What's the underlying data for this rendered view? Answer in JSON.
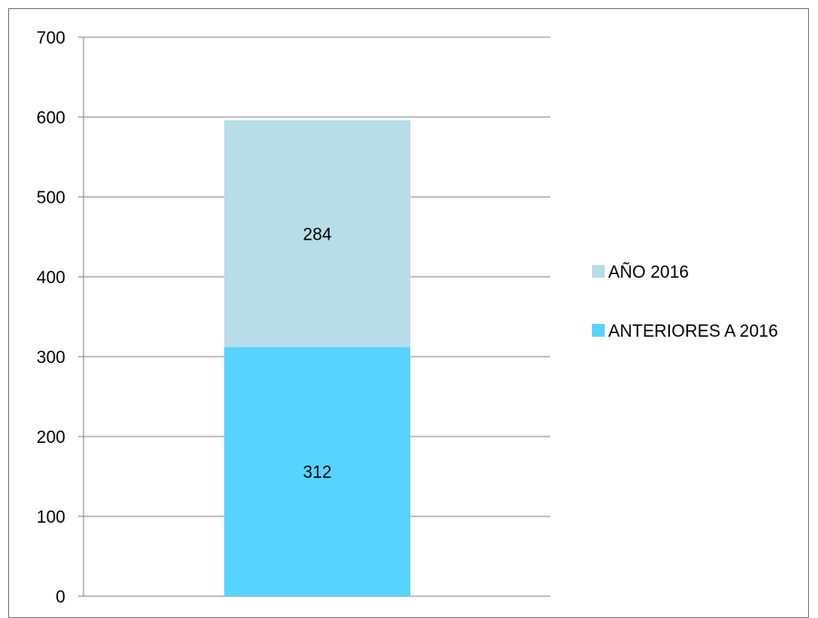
{
  "chart_data": {
    "type": "bar",
    "stacked": true,
    "categories": [
      ""
    ],
    "series": [
      {
        "name": "ANTERIORES A 2016",
        "values": [
          312
        ],
        "color": "#56d3ff"
      },
      {
        "name": "AÑO 2016",
        "values": [
          284
        ],
        "color": "#b7dde8"
      }
    ],
    "title": "",
    "xlabel": "",
    "ylabel": "",
    "ylim": [
      0,
      700
    ],
    "yticks": [
      0,
      100,
      200,
      300,
      400,
      500,
      600,
      700
    ],
    "grid": true,
    "legend_position": "right",
    "legend_order": [
      "AÑO 2016",
      "ANTERIORES A 2016"
    ],
    "data_labels": true
  }
}
